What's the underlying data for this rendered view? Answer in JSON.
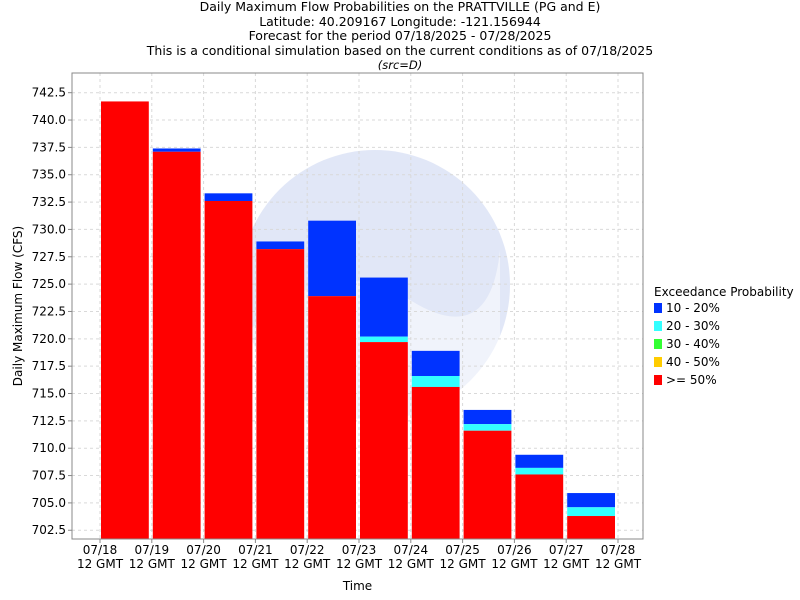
{
  "titles": {
    "line1": "Daily Maximum Flow Probabilities on the PRATTVILLE (PG and E)",
    "line2": "Latitude: 40.209167 Longitude: -121.156944",
    "line3": "Forecast for the period 07/18/2025 - 07/28/2025",
    "line4": "This is a conditional simulation based on the current conditions as of 07/18/2025",
    "line5": "(src=D)"
  },
  "colors": {
    "p10_20": "#0033ff",
    "p20_30": "#33ffff",
    "p30_40": "#33ff33",
    "p40_50": "#ffcc00",
    "ge50": "#ff0000",
    "grid": "#d9d9d9",
    "watermark": "#c8d4f0"
  },
  "chart_data": {
    "type": "bar",
    "xlabel": "Time",
    "ylabel": "Daily Maximum Flow (CFS)",
    "ylim": [
      701.7,
      744.3
    ],
    "yticks": [
      "702.5",
      "705.0",
      "707.5",
      "710.0",
      "712.5",
      "715.0",
      "717.5",
      "720.0",
      "722.5",
      "725.0",
      "727.5",
      "730.0",
      "732.5",
      "735.0",
      "737.5",
      "740.0",
      "742.5"
    ],
    "xticks": [
      {
        "date": "07/18",
        "time": "12 GMT"
      },
      {
        "date": "07/19",
        "time": "12 GMT"
      },
      {
        "date": "07/20",
        "time": "12 GMT"
      },
      {
        "date": "07/21",
        "time": "12 GMT"
      },
      {
        "date": "07/22",
        "time": "12 GMT"
      },
      {
        "date": "07/23",
        "time": "12 GMT"
      },
      {
        "date": "07/24",
        "time": "12 GMT"
      },
      {
        "date": "07/25",
        "time": "12 GMT"
      },
      {
        "date": "07/26",
        "time": "12 GMT"
      },
      {
        "date": "07/27",
        "time": "12 GMT"
      },
      {
        "date": "07/28",
        "time": "12 GMT"
      }
    ],
    "legend": {
      "title": "Exceedance Probability",
      "entries": [
        {
          "label": "10 - 20%",
          "color": "#0033ff"
        },
        {
          "label": "20 - 30%",
          "color": "#33ffff"
        },
        {
          "label": "30 - 40%",
          "color": "#33ff33"
        },
        {
          "label": "40 - 50%",
          "color": "#ffcc00"
        },
        {
          "label": ">= 50%",
          "color": "#ff0000"
        }
      ]
    },
    "days": [
      {
        "ge50": 741.7,
        "p20_30": 741.7,
        "p10_20": 741.7
      },
      {
        "ge50": 737.1,
        "p20_30": 737.1,
        "p10_20": 737.4
      },
      {
        "ge50": 732.6,
        "p20_30": 732.6,
        "p10_20": 733.3
      },
      {
        "ge50": 728.2,
        "p20_30": 728.2,
        "p10_20": 728.9
      },
      {
        "ge50": 723.9,
        "p20_30": 723.9,
        "p10_20": 730.8
      },
      {
        "ge50": 719.7,
        "p20_30": 720.2,
        "p10_20": 725.6
      },
      {
        "ge50": 715.6,
        "p20_30": 716.6,
        "p10_20": 718.9
      },
      {
        "ge50": 711.6,
        "p20_30": 712.2,
        "p10_20": 713.5
      },
      {
        "ge50": 707.6,
        "p20_30": 708.2,
        "p10_20": 709.4
      },
      {
        "ge50": 703.8,
        "p20_30": 704.6,
        "p10_20": 705.9
      }
    ]
  }
}
